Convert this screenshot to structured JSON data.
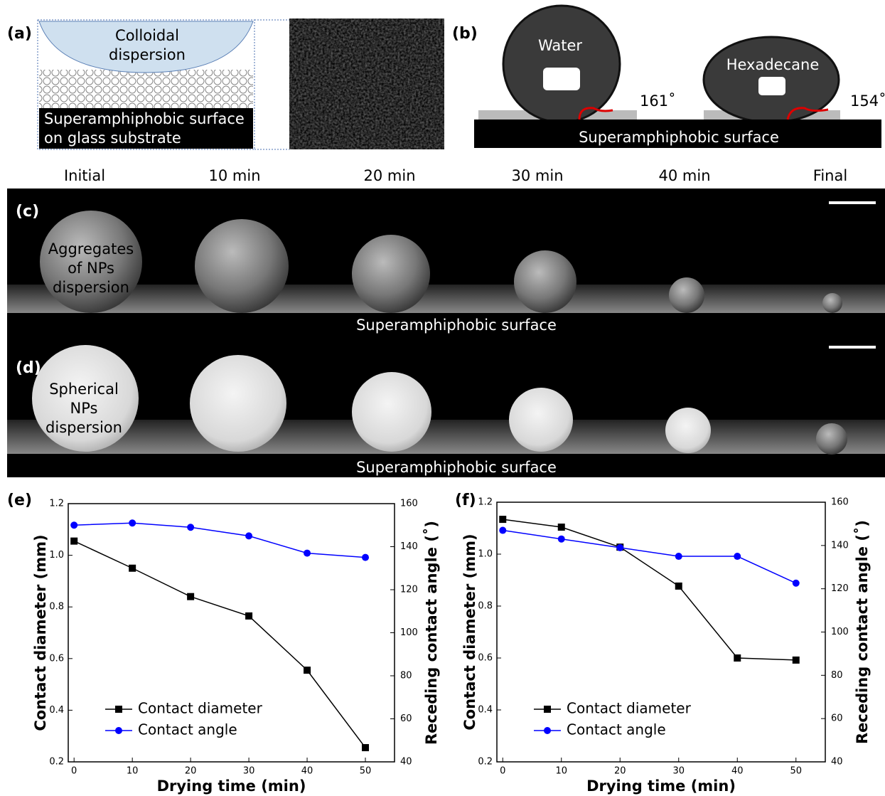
{
  "panel_a": {
    "label": "(a)",
    "bowl_text": [
      "Colloidal",
      "dispersion"
    ],
    "surface_text": [
      "Superamphiphobic surface",
      "on glass substrate"
    ]
  },
  "panel_b": {
    "label": "(b)",
    "drops": [
      {
        "name": "Water",
        "angle": "161˚"
      },
      {
        "name": "Hexadecane",
        "angle": "154˚"
      }
    ],
    "surface_text": "Superamphiphobic surface"
  },
  "time_labels": [
    "Initial",
    "10 min",
    "20 min",
    "30 min",
    "40 min",
    "Final"
  ],
  "panel_c": {
    "label": "(c)",
    "drop_text": [
      "Aggregates",
      "of NPs",
      "dispersion"
    ],
    "surface_text": "Superamphiphobic surface"
  },
  "panel_d": {
    "label": "(d)",
    "drop_text": [
      "Spherical",
      "NPs",
      "dispersion"
    ],
    "surface_text": "Superamphiphobic surface"
  },
  "chart_data": [
    {
      "type": "line",
      "panel_label": "(e)",
      "xlabel": "Drying time (min)",
      "ylabel": "Contact diameter (mm)",
      "y2label": "Receding contact angle (˚)",
      "x": [
        0,
        10,
        20,
        30,
        40,
        50
      ],
      "series": [
        {
          "name": "Contact diameter",
          "color": "#000000",
          "marker": "square",
          "axis": "y",
          "values": [
            1.055,
            0.95,
            0.84,
            0.765,
            0.555,
            0.255
          ]
        },
        {
          "name": "Contact angle",
          "color": "#0000ff",
          "marker": "circle",
          "axis": "y2",
          "values": [
            150,
            151,
            149,
            145,
            137,
            135
          ]
        }
      ],
      "xlim": [
        -1,
        55
      ],
      "xticks": [
        0,
        10,
        20,
        30,
        40,
        50
      ],
      "ylim": [
        0.2,
        1.2
      ],
      "yticks": [
        0.2,
        0.4,
        0.6,
        0.8,
        {
          "value": 1,
          "label": "1.0"
        },
        1.2
      ],
      "y2lim": [
        40,
        160
      ],
      "y2ticks": [
        40,
        60,
        80,
        100,
        120,
        140,
        160
      ],
      "legend": "lower left"
    },
    {
      "type": "line",
      "panel_label": "(f)",
      "xlabel": "Drying time (min)",
      "ylabel": "Contact diameter (mm)",
      "y2label": "Receding contact angle (˚)",
      "x": [
        0,
        10,
        20,
        30,
        40,
        50
      ],
      "series": [
        {
          "name": "Contact diameter",
          "color": "#000000",
          "marker": "square",
          "axis": "y",
          "values": [
            1.134,
            1.104,
            1.027,
            0.877,
            0.6,
            0.592
          ]
        },
        {
          "name": "Contact angle",
          "color": "#0000ff",
          "marker": "circle",
          "axis": "y2",
          "values": [
            147,
            143,
            139,
            135,
            135,
            122.6
          ]
        }
      ],
      "xlim": [
        -1,
        55
      ],
      "xticks": [
        0,
        10,
        20,
        30,
        40,
        50
      ],
      "ylim": [
        0.2,
        1.2
      ],
      "yticks": [
        0.2,
        0.4,
        0.6,
        0.8,
        {
          "value": 1,
          "label": "1.0"
        },
        1.2
      ],
      "y2lim": [
        40,
        160
      ],
      "y2ticks": [
        40,
        60,
        80,
        100,
        120,
        140,
        160
      ],
      "legend": "lower left"
    }
  ]
}
